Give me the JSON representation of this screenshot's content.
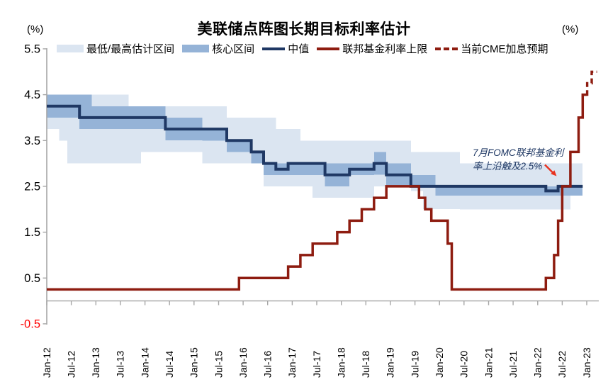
{
  "chart_data": {
    "type": "area+line step chart",
    "title": "美联储点阵图长期目标利率估计",
    "unit_left": "(%)",
    "unit_right": "(%)",
    "x_unit": "months since Jan-2012",
    "ylim": [
      -0.5,
      5.5
    ],
    "grid": "off",
    "legend_position": "top",
    "colors": {
      "range_band": "#dbe5f1",
      "core_band": "#95b3d7",
      "median_line": "#1f3864",
      "ffr_line": "#8e1c10",
      "cme_line": "#8e1c10",
      "axis": "#a6a6a6",
      "tick_label": "#000000",
      "negative_tick_label": "#ff0000",
      "annotation_text": "#1f3864",
      "annotation_arrow": "#e8321f"
    },
    "legend": [
      {
        "id": "min-max-range",
        "label": "最低/最高估计区间",
        "type": "area",
        "color": "#dbe5f1"
      },
      {
        "id": "core-range",
        "label": "核心区间",
        "type": "area",
        "color": "#95b3d7"
      },
      {
        "id": "median",
        "label": "中值",
        "type": "line",
        "color": "#1f3864"
      },
      {
        "id": "ffr-upper",
        "label": "联邦基金利率上限",
        "type": "line",
        "color": "#8e1c10"
      },
      {
        "id": "cme-expectation",
        "label": "当前CME加息预期",
        "type": "dashed-line",
        "color": "#8e1c10"
      }
    ],
    "y_axis": {
      "ticks": [
        {
          "value": 5.5,
          "label": "5.5",
          "color": "#000000"
        },
        {
          "value": 4.5,
          "label": "4.5",
          "color": "#000000"
        },
        {
          "value": 3.5,
          "label": "3.5",
          "color": "#000000"
        },
        {
          "value": 2.5,
          "label": "2.5",
          "color": "#000000"
        },
        {
          "value": 1.5,
          "label": "1.5",
          "color": "#000000"
        },
        {
          "value": 0.5,
          "label": "0.5",
          "color": "#000000"
        },
        {
          "value": -0.5,
          "label": "-0.5",
          "color": "#ff0000"
        }
      ]
    },
    "x_axis": {
      "ticks": [
        {
          "month": 0,
          "label": "Jan-12"
        },
        {
          "month": 6,
          "label": "Jul-12"
        },
        {
          "month": 12,
          "label": "Jan-13"
        },
        {
          "month": 18,
          "label": "Jul-13"
        },
        {
          "month": 24,
          "label": "Jan-14"
        },
        {
          "month": 30,
          "label": "Jul-14"
        },
        {
          "month": 36,
          "label": "Jan-15"
        },
        {
          "month": 42,
          "label": "Jul-15"
        },
        {
          "month": 48,
          "label": "Jan-16"
        },
        {
          "month": 54,
          "label": "Jul-16"
        },
        {
          "month": 60,
          "label": "Jan-17"
        },
        {
          "month": 66,
          "label": "Jul-17"
        },
        {
          "month": 72,
          "label": "Jan-18"
        },
        {
          "month": 78,
          "label": "Jul-18"
        },
        {
          "month": 84,
          "label": "Jan-19"
        },
        {
          "month": 90,
          "label": "Jul-19"
        },
        {
          "month": 96,
          "label": "Jan-20"
        },
        {
          "month": 102,
          "label": "Jul-20"
        },
        {
          "month": 108,
          "label": "Jan-21"
        },
        {
          "month": 114,
          "label": "Jul-21"
        },
        {
          "month": 120,
          "label": "Jan-22"
        },
        {
          "month": 126,
          "label": "Jul-22"
        },
        {
          "month": 132,
          "label": "Jan-23"
        }
      ]
    },
    "bands": [
      {
        "from": 0,
        "to": 3,
        "range": [
          3.75,
          4.5
        ],
        "core": [
          4.0,
          4.5
        ]
      },
      {
        "from": 3,
        "to": 5,
        "range": [
          3.5,
          4.5
        ],
        "core": [
          4.0,
          4.5
        ]
      },
      {
        "from": 5,
        "to": 8,
        "range": [
          3.0,
          4.5
        ],
        "core": [
          4.0,
          4.5
        ]
      },
      {
        "from": 8,
        "to": 11,
        "range": [
          3.0,
          4.5
        ],
        "core": [
          3.75,
          4.5
        ]
      },
      {
        "from": 11,
        "to": 20,
        "range": [
          3.0,
          4.5
        ],
        "core": [
          3.75,
          4.25
        ]
      },
      {
        "from": 20,
        "to": 23,
        "range": [
          3.0,
          4.25
        ],
        "core": [
          3.75,
          4.25
        ]
      },
      {
        "from": 23,
        "to": 29,
        "range": [
          3.25,
          4.25
        ],
        "core": [
          3.75,
          4.25
        ]
      },
      {
        "from": 29,
        "to": 38,
        "range": [
          3.25,
          4.25
        ],
        "core": [
          3.5,
          4.0
        ]
      },
      {
        "from": 38,
        "to": 44,
        "range": [
          3.0,
          4.25
        ],
        "core": [
          3.5,
          3.75
        ]
      },
      {
        "from": 44,
        "to": 50,
        "range": [
          3.0,
          4.0
        ],
        "core": [
          3.25,
          3.5
        ]
      },
      {
        "from": 50,
        "to": 53,
        "range": [
          3.0,
          4.0
        ],
        "core": [
          3.0,
          3.25
        ]
      },
      {
        "from": 53,
        "to": 56,
        "range": [
          2.5,
          4.0
        ],
        "core": [
          2.75,
          3.0
        ]
      },
      {
        "from": 56,
        "to": 62,
        "range": [
          2.5,
          3.75
        ],
        "core": [
          2.75,
          3.0
        ]
      },
      {
        "from": 62,
        "to": 65,
        "range": [
          2.5,
          3.5
        ],
        "core": [
          2.75,
          3.0
        ]
      },
      {
        "from": 65,
        "to": 68,
        "range": [
          2.25,
          3.5
        ],
        "core": [
          2.75,
          3.0
        ]
      },
      {
        "from": 68,
        "to": 74,
        "range": [
          2.25,
          3.5
        ],
        "core": [
          2.5,
          3.0
        ]
      },
      {
        "from": 74,
        "to": 80,
        "range": [
          2.25,
          3.5
        ],
        "core": [
          2.75,
          3.0
        ]
      },
      {
        "from": 80,
        "to": 83,
        "range": [
          2.5,
          3.5
        ],
        "core": [
          2.75,
          3.25
        ]
      },
      {
        "from": 83,
        "to": 89,
        "range": [
          2.5,
          3.5
        ],
        "core": [
          2.5,
          3.0
        ]
      },
      {
        "from": 89,
        "to": 92,
        "range": [
          2.4,
          3.25
        ],
        "core": [
          2.5,
          2.75
        ]
      },
      {
        "from": 92,
        "to": 95,
        "range": [
          2.0,
          3.25
        ],
        "core": [
          2.5,
          2.75
        ]
      },
      {
        "from": 95,
        "to": 101,
        "range": [
          2.0,
          3.25
        ],
        "core": [
          2.3,
          2.5
        ]
      },
      {
        "from": 101,
        "to": 128,
        "range": [
          2.0,
          3.0
        ],
        "core": [
          2.3,
          2.5
        ]
      },
      {
        "from": 128,
        "to": 131,
        "range": [
          2.3,
          3.0
        ],
        "core": [
          2.3,
          2.5
        ]
      }
    ],
    "series": {
      "median": {
        "name": "中值",
        "points": [
          [
            0,
            4.25
          ],
          [
            8,
            4.0
          ],
          [
            29,
            3.75
          ],
          [
            44,
            3.5
          ],
          [
            50,
            3.25
          ],
          [
            53,
            3.0
          ],
          [
            56,
            2.875
          ],
          [
            59,
            3.0
          ],
          [
            68,
            2.75
          ],
          [
            74,
            2.875
          ],
          [
            80,
            3.0
          ],
          [
            83,
            2.75
          ],
          [
            89,
            2.5
          ],
          [
            122,
            2.4
          ],
          [
            125,
            2.5
          ]
        ],
        "end": 131
      },
      "ffr_upper": {
        "name": "联邦基金利率上限",
        "points": [
          [
            0,
            0.25
          ],
          [
            47,
            0.5
          ],
          [
            59,
            0.75
          ],
          [
            62,
            1.0
          ],
          [
            65,
            1.25
          ],
          [
            71,
            1.5
          ],
          [
            74,
            1.75
          ],
          [
            77,
            2.0
          ],
          [
            80,
            2.25
          ],
          [
            83,
            2.5
          ],
          [
            91,
            2.25
          ],
          [
            92.5,
            2.0
          ],
          [
            94,
            1.75
          ],
          [
            98,
            1.25
          ],
          [
            99,
            0.25
          ],
          [
            122,
            0.5
          ],
          [
            124,
            1.0
          ],
          [
            125,
            1.75
          ],
          [
            126,
            2.5
          ],
          [
            128,
            3.25
          ],
          [
            130,
            4.0
          ],
          [
            131,
            4.5
          ]
        ],
        "end": 132
      },
      "cme_expectation": {
        "name": "当前CME加息预期",
        "points": [
          [
            132,
            4.5
          ],
          [
            132.1,
            4.75
          ],
          [
            133.2,
            5.0
          ]
        ],
        "end": 134.5
      }
    },
    "annotation": {
      "text_lines": [
        "7月FOMC联邦基金利",
        "率上沿触及2.5%"
      ],
      "arrow_target_value": 2.5
    }
  }
}
